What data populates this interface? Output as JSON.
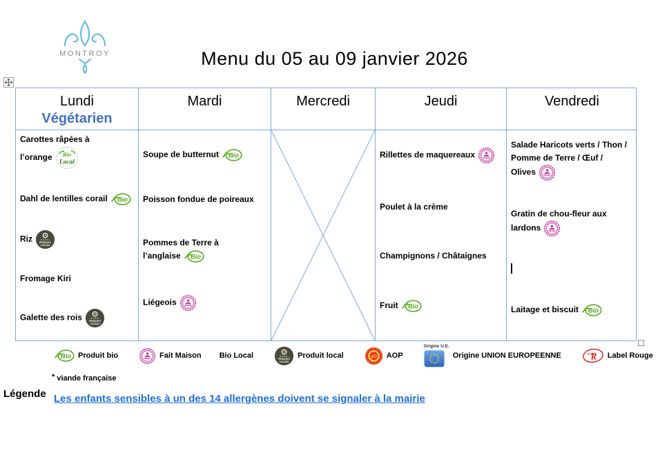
{
  "page": {
    "title": "Menu du 05 au 09 janvier 2026",
    "brand": "MONTROY"
  },
  "colors": {
    "table_border": "#7FA8D8",
    "vegetarien_blue": "#4472C4",
    "link_blue": "#1F6FE0",
    "bio_green": "#4FA616",
    "fait_maison_pink": "#C0399F",
    "produits_locaux_dark": "#4A4A3A",
    "aop_red": "#E3342A",
    "aop_yellow": "#F7D23E",
    "eu_blue": "#3A7BD5",
    "label_rouge_red": "#D6231F",
    "logo_blue": "#5FB4E5"
  },
  "icons": {
    "bio_text": "Bio",
    "bio_local_text_top": "Bio",
    "bio_local_text_bottom": "Local",
    "produits_locaux_text_top": "PRODUITS",
    "produits_locaux_text_bottom": "LOCAUX",
    "eu_caption": "Origine U.E.",
    "label_rouge_text_small": "Label",
    "label_rouge_text_big": "R"
  },
  "table": {
    "days": [
      {
        "name": "Lundi",
        "subtitle": "Végétarien",
        "items": [
          {
            "text": "Carottes râpées à\nl’orange",
            "icon": "bio-local"
          },
          {
            "text": "Dahl de lentilles corail",
            "icon": "bio"
          },
          {
            "text": "Riz",
            "icon": "produits-locaux"
          },
          {
            "text": "Fromage Kiri",
            "icon": null
          },
          {
            "text": "Galette des rois",
            "icon": "produits-locaux"
          }
        ]
      },
      {
        "name": "Mardi",
        "subtitle": null,
        "items": [
          {
            "text": "Soupe de butternut",
            "icon": "bio"
          },
          {
            "text": "Poisson fondue de poireaux",
            "icon": null
          },
          {
            "text": "Pommes de Terre à\nl’anglaise",
            "icon": "bio"
          },
          {
            "text": "Liégeois",
            "icon": "fait-maison"
          }
        ]
      },
      {
        "name": "Mercredi",
        "subtitle": null,
        "crossed_out": true,
        "items": []
      },
      {
        "name": "Jeudi",
        "subtitle": null,
        "items": [
          {
            "text": "Rillettes de maquereaux",
            "icon": "fait-maison"
          },
          {
            "text": "Poulet à la crème",
            "icon": null
          },
          {
            "text": "Champignons / Châtaignes",
            "icon": null
          },
          {
            "text": "Fruit",
            "icon": "bio"
          }
        ]
      },
      {
        "name": "Vendredi",
        "subtitle": null,
        "items": [
          {
            "text": "Salade Haricots verts / Thon /\nPomme de Terre / Œuf /\nOlives",
            "icon": "fait-maison"
          },
          {
            "text": "Gratin de chou-fleur aux\nlardons",
            "icon": "fait-maison"
          },
          {
            "text": "",
            "cursor": true,
            "icon": null
          },
          {
            "text": "Laitage et biscuit",
            "icon": "bio"
          }
        ]
      }
    ]
  },
  "legend": {
    "items": [
      {
        "icon": "bio",
        "label": "Produit bio"
      },
      {
        "icon": "fait-maison",
        "label": "Fait Maison"
      },
      {
        "icon": null,
        "label": "Bio Local"
      },
      {
        "icon": "produits-locaux",
        "label": "Produit local"
      },
      {
        "icon": "aop",
        "label": "AOP"
      },
      {
        "icon": "origine-ue",
        "label": "Origine UNION EUROPEENNE"
      },
      {
        "icon": "label-rouge",
        "label": "Label Rouge"
      }
    ],
    "footnote_marker": "*",
    "footnote_text": "viande française"
  },
  "footer": {
    "legende_label": "Légende",
    "allergen_notice": "Les enfants sensibles à un des 14 allergènes doivent se signaler à la mairie"
  }
}
